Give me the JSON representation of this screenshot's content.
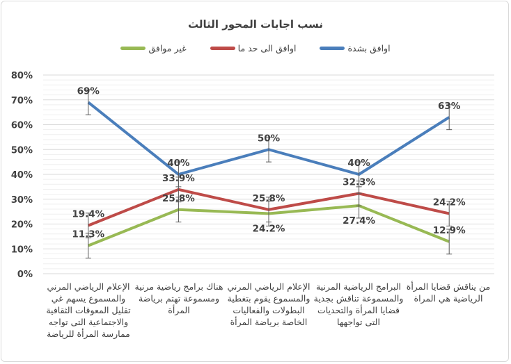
{
  "chart_data": {
    "type": "line",
    "title": "نسب اجابات المحور الثالث",
    "categories": [
      "الإعلام الرياضي المرني والمسموع يسهم غي تقليل المعوقات الثقافية والاجتماعية التى تواجه ممارسة المرأة للرياضة",
      "هناك برامج رياضية مرنية ومسموعة تهتم برياضة المرأة",
      "الإعلام الرياضي المرني والمسموع يقوم بتغطية البطولات والفعاليات الخاصة برياضة المرأة",
      "البرامج الرياضية المرنية والمسموعة تناقش بجدية قضايا المرأة والتحديات التى تواجهها",
      "من يناقش قضايا المرأة الرياضية هي المراة"
    ],
    "series": [
      {
        "name": "اوافق بشدة",
        "color": "#4a7ebb",
        "values": [
          69,
          40,
          50,
          40,
          63
        ],
        "labels": [
          "69%",
          "40%",
          "50%",
          "40%",
          "63%"
        ]
      },
      {
        "name": "اوافق الى حد ما",
        "color": "#be4b48",
        "values": [
          19.4,
          33.9,
          25.8,
          32.3,
          24.2
        ],
        "labels": [
          "19.4%",
          "33.9%",
          "25.8%",
          "32.3%",
          "24.2%"
        ]
      },
      {
        "name": "غير موافق",
        "color": "#98b954",
        "values": [
          11.3,
          25.8,
          24.2,
          27.4,
          12.9
        ],
        "labels": [
          "11.3%",
          "25.8%",
          "24.2%",
          "27.4%",
          "12.9%"
        ]
      }
    ],
    "error_bar": 5,
    "ylim": [
      0,
      80
    ],
    "yticks": [
      "0%",
      "10%",
      "20%",
      "30%",
      "40%",
      "50%",
      "60%",
      "70%",
      "80%"
    ],
    "grid": true,
    "legend": "top"
  }
}
